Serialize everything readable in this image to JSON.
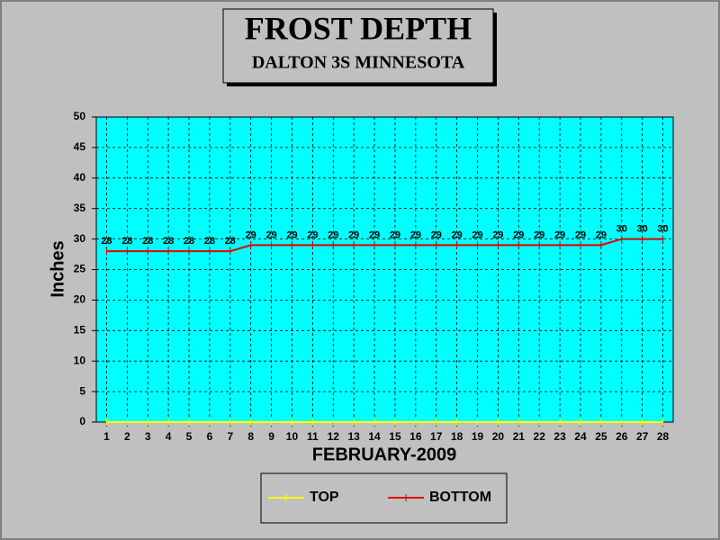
{
  "chart_data": {
    "type": "line",
    "title": "FROST DEPTH",
    "subtitle": "DALTON 3S MINNESOTA",
    "x_label": "FEBRUARY-2009",
    "y_label": "Inches",
    "categories": [
      "1",
      "2",
      "3",
      "4",
      "5",
      "6",
      "7",
      "8",
      "9",
      "10",
      "11",
      "12",
      "13",
      "14",
      "15",
      "16",
      "17",
      "18",
      "19",
      "20",
      "21",
      "22",
      "23",
      "24",
      "25",
      "26",
      "27",
      "28"
    ],
    "series": [
      {
        "name": "TOP",
        "color": "#ffff00",
        "values": [
          0,
          0,
          0,
          0,
          0,
          0,
          0,
          0,
          0,
          0,
          0,
          0,
          0,
          0,
          0,
          0,
          0,
          0,
          0,
          0,
          0,
          0,
          0,
          0,
          0,
          0,
          0,
          0
        ]
      },
      {
        "name": "BOTTOM",
        "color": "#e00000",
        "values": [
          28,
          28,
          28,
          28,
          28,
          28,
          28,
          29,
          29,
          29,
          29,
          29,
          29,
          29,
          29,
          29,
          29,
          29,
          29,
          29,
          29,
          29,
          29,
          29,
          29,
          30,
          30,
          30
        ]
      }
    ],
    "ylim": [
      0,
      50
    ],
    "yticks": [
      0,
      5,
      10,
      15,
      20,
      25,
      30,
      35,
      40,
      45,
      50
    ],
    "grid": true,
    "data_labels_series": "BOTTOM"
  }
}
